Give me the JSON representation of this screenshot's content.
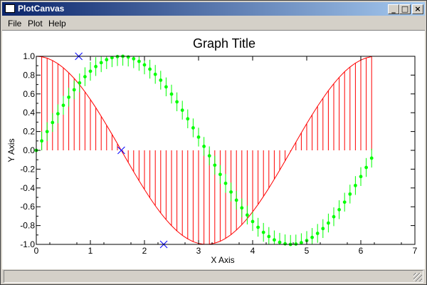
{
  "window": {
    "title": "PlotCanvas",
    "controls": {
      "minimize": "_",
      "maximize": "□",
      "close": "×"
    }
  },
  "menu": {
    "items": [
      "File",
      "Plot",
      "Help"
    ]
  },
  "chart_data": {
    "type": "line",
    "title": "Graph Title",
    "xlabel": "X Axis",
    "ylabel": "Y Axis",
    "xlim": [
      0,
      7
    ],
    "ylim": [
      -1.0,
      1.0
    ],
    "xticks": [
      0,
      1,
      2,
      3,
      4,
      5,
      6,
      7
    ],
    "yticks": [
      1.0,
      0.8,
      0.6,
      0.4,
      0.2,
      0.0,
      -0.2,
      -0.4,
      -0.6,
      -0.8,
      -1.0
    ],
    "ytick_labels": [
      "1.0",
      "0.8",
      "0.6",
      "0.4",
      "0.2",
      "0.0",
      "-0.2",
      "-0.4",
      "-0.6",
      "-0.8",
      "-1.0"
    ],
    "grid": false,
    "series": [
      {
        "style": "line-with-stems",
        "color": "#ff0000",
        "x": [
          0,
          0.1,
          0.2,
          0.3,
          0.4,
          0.5,
          0.6,
          0.7,
          0.8,
          0.9,
          1,
          1.1,
          1.2,
          1.3,
          1.4,
          1.5,
          1.6,
          1.7,
          1.8,
          1.9,
          2,
          2.1,
          2.2,
          2.3,
          2.4,
          2.5,
          2.6,
          2.7,
          2.8,
          2.9,
          3,
          3.1,
          3.2,
          3.3,
          3.4,
          3.5,
          3.6,
          3.7,
          3.8,
          3.9,
          4,
          4.1,
          4.2,
          4.3,
          4.4,
          4.5,
          4.6,
          4.7,
          4.8,
          4.9,
          5,
          5.1,
          5.2,
          5.3,
          5.4,
          5.5,
          5.6,
          5.7,
          5.8,
          5.9,
          6,
          6.1,
          6.2
        ],
        "y": [
          1,
          0.995,
          0.98,
          0.955,
          0.921,
          0.878,
          0.825,
          0.765,
          0.697,
          0.622,
          0.54,
          0.454,
          0.362,
          0.267,
          0.17,
          0.071,
          -0.029,
          -0.129,
          -0.227,
          -0.323,
          -0.416,
          -0.505,
          -0.589,
          -0.666,
          -0.737,
          -0.801,
          -0.857,
          -0.904,
          -0.942,
          -0.971,
          -0.99,
          -0.999,
          -0.998,
          -0.987,
          -0.967,
          -0.936,
          -0.897,
          -0.848,
          -0.791,
          -0.726,
          -0.654,
          -0.575,
          -0.49,
          -0.401,
          -0.307,
          -0.211,
          -0.112,
          -0.012,
          0.087,
          0.187,
          0.284,
          0.378,
          0.469,
          0.554,
          0.635,
          0.709,
          0.776,
          0.836,
          0.886,
          0.928,
          0.96,
          0.983,
          0.997
        ]
      },
      {
        "style": "points-with-errorbars",
        "color": "#00ff00",
        "error": 0.1,
        "x": [
          0,
          0.1,
          0.2,
          0.3,
          0.4,
          0.5,
          0.6,
          0.7,
          0.8,
          0.9,
          1,
          1.1,
          1.2,
          1.3,
          1.4,
          1.5,
          1.6,
          1.7,
          1.8,
          1.9,
          2,
          2.1,
          2.2,
          2.3,
          2.4,
          2.5,
          2.6,
          2.7,
          2.8,
          2.9,
          3,
          3.1,
          3.2,
          3.3,
          3.4,
          3.5,
          3.6,
          3.7,
          3.8,
          3.9,
          4,
          4.1,
          4.2,
          4.3,
          4.4,
          4.5,
          4.6,
          4.7,
          4.8,
          4.9,
          5,
          5.1,
          5.2,
          5.3,
          5.4,
          5.5,
          5.6,
          5.7,
          5.8,
          5.9,
          6,
          6.1,
          6.2
        ],
        "y": [
          0,
          0.1,
          0.199,
          0.296,
          0.389,
          0.479,
          0.565,
          0.644,
          0.717,
          0.783,
          0.841,
          0.891,
          0.932,
          0.964,
          0.985,
          0.997,
          1,
          0.992,
          0.974,
          0.946,
          0.909,
          0.863,
          0.808,
          0.746,
          0.675,
          0.598,
          0.516,
          0.427,
          0.335,
          0.239,
          0.141,
          0.042,
          -0.058,
          -0.158,
          -0.256,
          -0.351,
          -0.443,
          -0.53,
          -0.612,
          -0.688,
          -0.757,
          -0.818,
          -0.872,
          -0.916,
          -0.952,
          -0.978,
          -0.994,
          -1,
          -0.996,
          -0.982,
          -0.959,
          -0.926,
          -0.883,
          -0.832,
          -0.773,
          -0.706,
          -0.631,
          -0.551,
          -0.465,
          -0.374,
          -0.279,
          -0.182,
          -0.083
        ]
      },
      {
        "style": "markers-x",
        "color": "#0000ff",
        "x": [
          0.785,
          1.571,
          2.356
        ],
        "y": [
          1.0,
          0.0,
          -1.0
        ]
      }
    ]
  }
}
